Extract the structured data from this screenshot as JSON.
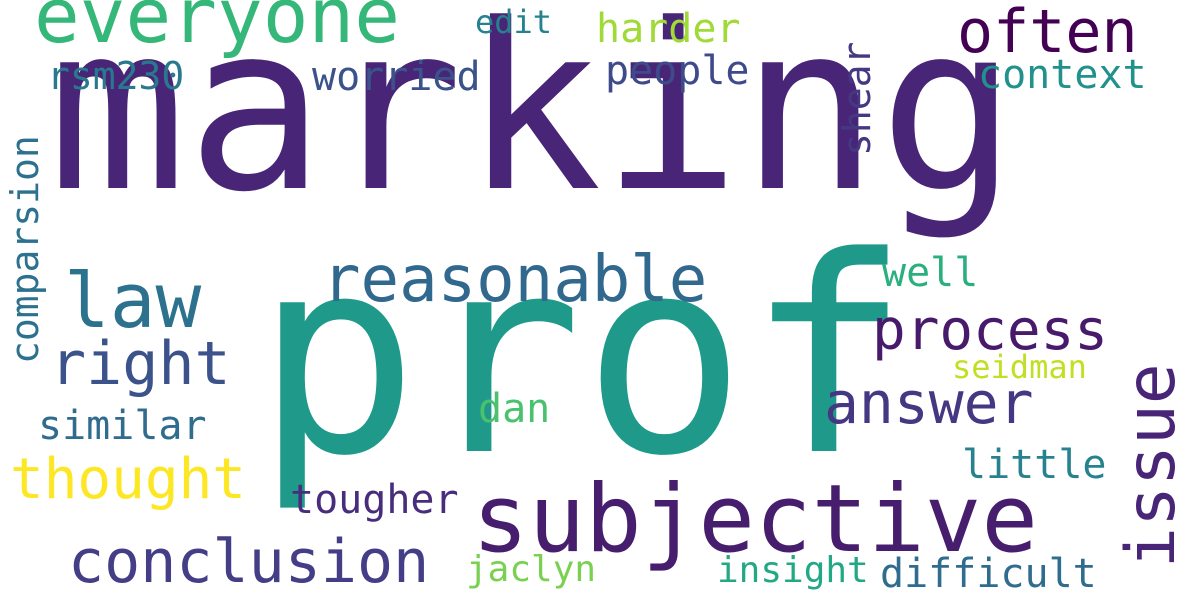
{
  "words": [
    {
      "text": "marking",
      "color": "#482576"
    },
    {
      "text": "prof",
      "color": "#1f9a8a"
    },
    {
      "text": "everyone",
      "color": "#35b779"
    },
    {
      "text": "often",
      "color": "#440154"
    },
    {
      "text": "reasonable",
      "color": "#31688e"
    },
    {
      "text": "subjective",
      "color": "#471e6e"
    },
    {
      "text": "issue",
      "color": "#482576"
    },
    {
      "text": "law",
      "color": "#2c728e"
    },
    {
      "text": "right",
      "color": "#3b528b"
    },
    {
      "text": "process",
      "color": "#481a6c"
    },
    {
      "text": "answer",
      "color": "#453781"
    },
    {
      "text": "conclusion",
      "color": "#433e85"
    },
    {
      "text": "thought",
      "color": "#fde725"
    },
    {
      "text": "worried",
      "color": "#3b528b"
    },
    {
      "text": "people",
      "color": "#3e4a89"
    },
    {
      "text": "context",
      "color": "#21918c"
    },
    {
      "text": "harder",
      "color": "#a0da39"
    },
    {
      "text": "edit",
      "color": "#26828e"
    },
    {
      "text": "rsm230",
      "color": "#2a788e"
    },
    {
      "text": "shear",
      "color": "#453882"
    },
    {
      "text": "comparsion",
      "color": "#2c718e"
    },
    {
      "text": "well",
      "color": "#2ab07f"
    },
    {
      "text": "seidman",
      "color": "#c2df23"
    },
    {
      "text": "dan",
      "color": "#4ac16d"
    },
    {
      "text": "similar",
      "color": "#2f6c8e"
    },
    {
      "text": "little",
      "color": "#26828e"
    },
    {
      "text": "tougher",
      "color": "#472d7b"
    },
    {
      "text": "jaclyn",
      "color": "#7ad151"
    },
    {
      "text": "insight",
      "color": "#22a884"
    },
    {
      "text": "difficult",
      "color": "#2f6c8e"
    }
  ]
}
